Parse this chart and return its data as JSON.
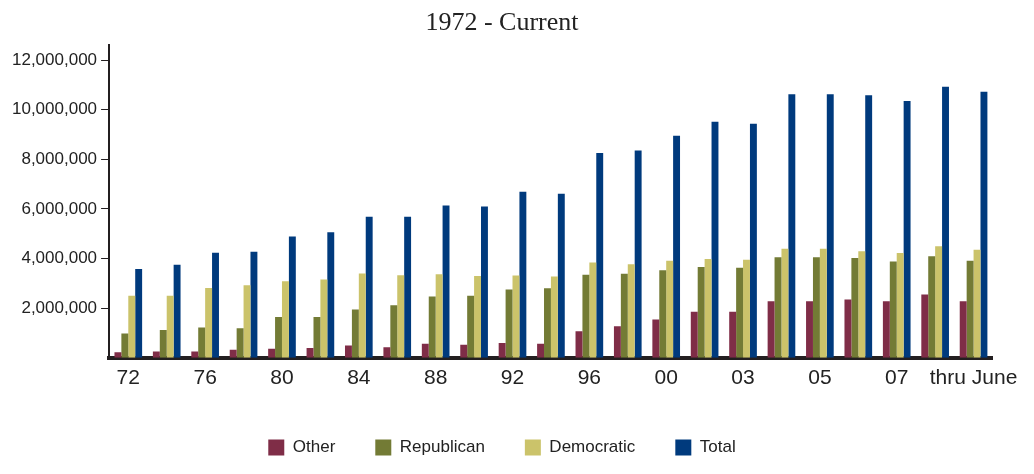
{
  "chart_data": {
    "type": "bar",
    "title": "1972 - Current",
    "categories": [
      "72",
      null,
      "76",
      null,
      "80",
      null,
      "84",
      null,
      "88",
      null,
      "92",
      null,
      "96",
      null,
      "00",
      null,
      "03",
      null,
      "05",
      null,
      "07",
      null,
      "thru June"
    ],
    "series": [
      {
        "name": "Other",
        "color": "#7f2d47",
        "values": [
          220000,
          250000,
          250000,
          320000,
          360000,
          390000,
          500000,
          430000,
          570000,
          530000,
          600000,
          570000,
          1070000,
          1270000,
          1540000,
          1860000,
          1860000,
          2280000,
          2280000,
          2350000,
          2280000,
          2550000,
          2280000
        ]
      },
      {
        "name": "Republican",
        "color": "#737b35",
        "values": [
          980000,
          1120000,
          1220000,
          1190000,
          1640000,
          1640000,
          1950000,
          2120000,
          2470000,
          2500000,
          2750000,
          2800000,
          3350000,
          3390000,
          3530000,
          3660000,
          3630000,
          4050000,
          4050000,
          4020000,
          3880000,
          4090000,
          3910000
        ]
      },
      {
        "name": "Democratic",
        "color": "#cbc36a",
        "values": [
          2500000,
          2500000,
          2810000,
          2920000,
          3090000,
          3160000,
          3400000,
          3330000,
          3370000,
          3300000,
          3320000,
          3280000,
          3840000,
          3770000,
          3910000,
          3980000,
          3950000,
          4400000,
          4400000,
          4290000,
          4220000,
          4500000,
          4360000
        ]
      },
      {
        "name": "Total",
        "color": "#003a7d",
        "values": [
          3580000,
          3750000,
          4230000,
          4270000,
          4890000,
          5060000,
          5690000,
          5690000,
          6140000,
          6100000,
          6690000,
          6610000,
          8250000,
          8360000,
          8950000,
          9510000,
          9430000,
          10620000,
          10620000,
          10580000,
          10350000,
          10930000,
          10720000
        ]
      }
    ],
    "ylim": [
      0,
      12600000
    ],
    "yticks": [
      {
        "value": 2000000,
        "label": "2,000,000"
      },
      {
        "value": 4000000,
        "label": "4,000,000"
      },
      {
        "value": 6000000,
        "label": "6,000,000"
      },
      {
        "value": 8000000,
        "label": "8,000,000"
      },
      {
        "value": 10000000,
        "label": "10,000,000"
      },
      {
        "value": 12000000,
        "label": "12,000,000"
      }
    ],
    "grid": false,
    "legend": "bottom"
  }
}
